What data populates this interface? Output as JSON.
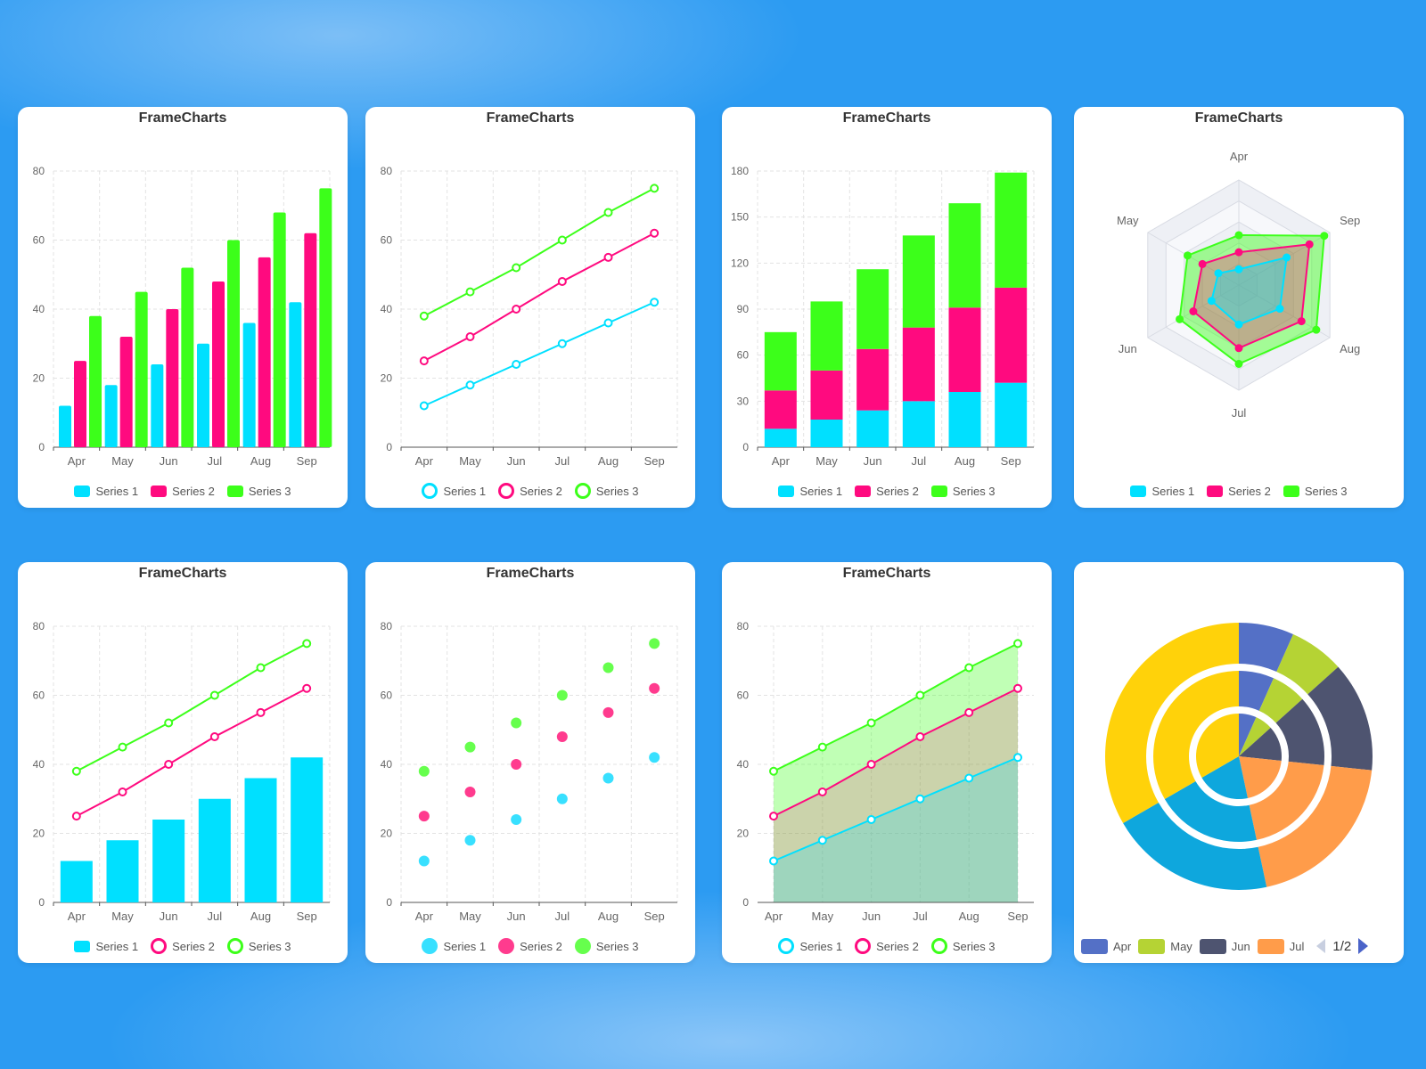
{
  "card_title": "FrameCharts",
  "months": [
    "Apr",
    "May",
    "Jun",
    "Jul",
    "Aug",
    "Sep"
  ],
  "colors": {
    "series1": "#00e0ff",
    "series2": "#ff0a7f",
    "series3": "#3cff1a",
    "scatter3": "#66ff4d",
    "scatter2": "#ff3b8e",
    "scatter1": "#38e0ff"
  },
  "legend": {
    "s1": "Series 1",
    "s2": "Series 2",
    "s3": "Series 3"
  },
  "pie_legend": {
    "apr": "Apr",
    "may": "May",
    "jun": "Jun",
    "jul": "Jul",
    "page": "1/2"
  },
  "pie_colors": [
    "#5470c6",
    "#b5d334",
    "#4e5470",
    "#ff9c4a",
    "#0ea7dd",
    "#ffd20a"
  ],
  "chart_data": [
    {
      "type": "bar",
      "title": "FrameCharts",
      "categories": [
        "Apr",
        "May",
        "Jun",
        "Jul",
        "Aug",
        "Sep"
      ],
      "ylim": [
        0,
        80
      ],
      "yticks": [
        0,
        20,
        40,
        60,
        80
      ],
      "series": [
        {
          "name": "Series 1",
          "values": [
            12,
            18,
            24,
            30,
            36,
            42
          ]
        },
        {
          "name": "Series 2",
          "values": [
            25,
            32,
            40,
            48,
            55,
            62
          ]
        },
        {
          "name": "Series 3",
          "values": [
            38,
            45,
            52,
            60,
            68,
            75
          ]
        }
      ]
    },
    {
      "type": "line",
      "title": "FrameCharts",
      "categories": [
        "Apr",
        "May",
        "Jun",
        "Jul",
        "Aug",
        "Sep"
      ],
      "ylim": [
        0,
        80
      ],
      "yticks": [
        0,
        20,
        40,
        60,
        80
      ],
      "series": [
        {
          "name": "Series 1",
          "values": [
            12,
            18,
            24,
            30,
            36,
            42
          ]
        },
        {
          "name": "Series 2",
          "values": [
            25,
            32,
            40,
            48,
            55,
            62
          ]
        },
        {
          "name": "Series 3",
          "values": [
            38,
            45,
            52,
            60,
            68,
            75
          ]
        }
      ]
    },
    {
      "type": "bar",
      "stacked": true,
      "title": "FrameCharts",
      "categories": [
        "Apr",
        "May",
        "Jun",
        "Jul",
        "Aug",
        "Sep"
      ],
      "ylim": [
        0,
        180
      ],
      "yticks": [
        0,
        30,
        60,
        90,
        120,
        150,
        180
      ],
      "series": [
        {
          "name": "Series 1",
          "values": [
            12,
            18,
            24,
            30,
            36,
            42
          ]
        },
        {
          "name": "Series 2",
          "values": [
            25,
            32,
            40,
            48,
            55,
            62
          ]
        },
        {
          "name": "Series 3",
          "values": [
            38,
            45,
            52,
            60,
            68,
            75
          ]
        }
      ]
    },
    {
      "type": "radar",
      "title": "FrameCharts",
      "indicators": [
        "Apr",
        "Sep",
        "Aug",
        "Jul",
        "Jun",
        "May"
      ],
      "max": 80,
      "series": [
        {
          "name": "Series 1",
          "values": [
            12,
            42,
            36,
            30,
            24,
            18
          ]
        },
        {
          "name": "Series 2",
          "values": [
            25,
            62,
            55,
            48,
            40,
            32
          ]
        },
        {
          "name": "Series 3",
          "values": [
            38,
            75,
            68,
            60,
            52,
            45
          ]
        }
      ]
    },
    {
      "type": "bar+line",
      "title": "FrameCharts",
      "categories": [
        "Apr",
        "May",
        "Jun",
        "Jul",
        "Aug",
        "Sep"
      ],
      "ylim": [
        0,
        80
      ],
      "yticks": [
        0,
        20,
        40,
        60,
        80
      ],
      "series": [
        {
          "name": "Series 1",
          "kind": "bar",
          "values": [
            12,
            18,
            24,
            30,
            36,
            42
          ]
        },
        {
          "name": "Series 2",
          "kind": "line",
          "values": [
            25,
            32,
            40,
            48,
            55,
            62
          ]
        },
        {
          "name": "Series 3",
          "kind": "line",
          "values": [
            38,
            45,
            52,
            60,
            68,
            75
          ]
        }
      ]
    },
    {
      "type": "scatter",
      "title": "FrameCharts",
      "categories": [
        "Apr",
        "May",
        "Jun",
        "Jul",
        "Aug",
        "Sep"
      ],
      "ylim": [
        0,
        80
      ],
      "yticks": [
        0,
        20,
        40,
        60,
        80
      ],
      "series": [
        {
          "name": "Series 1",
          "values": [
            12,
            18,
            24,
            30,
            36,
            42
          ]
        },
        {
          "name": "Series 2",
          "values": [
            25,
            32,
            40,
            48,
            55,
            62
          ]
        },
        {
          "name": "Series 3",
          "values": [
            38,
            45,
            52,
            60,
            68,
            75
          ]
        }
      ]
    },
    {
      "type": "area",
      "title": "FrameCharts",
      "categories": [
        "Apr",
        "May",
        "Jun",
        "Jul",
        "Aug",
        "Sep"
      ],
      "ylim": [
        0,
        80
      ],
      "yticks": [
        0,
        20,
        40,
        60,
        80
      ],
      "series": [
        {
          "name": "Series 1",
          "values": [
            12,
            18,
            24,
            30,
            36,
            42
          ]
        },
        {
          "name": "Series 2",
          "values": [
            25,
            32,
            40,
            48,
            55,
            62
          ]
        },
        {
          "name": "Series 3",
          "values": [
            38,
            45,
            52,
            60,
            68,
            75
          ]
        }
      ]
    },
    {
      "type": "pie",
      "variant": "nested-rings",
      "legend_visible": [
        "Apr",
        "May",
        "Jun",
        "Jul"
      ],
      "legend_page": "1/2",
      "rings": [
        {
          "name": "inner",
          "slices": [
            {
              "label": "Apr",
              "value": 1
            },
            {
              "label": "May",
              "value": 1
            },
            {
              "label": "Jun",
              "value": 2
            },
            {
              "label": "Jul",
              "value": 3
            },
            {
              "label": "Aug",
              "value": 3
            },
            {
              "label": "Sep",
              "value": 5
            }
          ]
        },
        {
          "name": "middle",
          "slices": [
            {
              "label": "Apr",
              "value": 1
            },
            {
              "label": "May",
              "value": 1
            },
            {
              "label": "Jun",
              "value": 2
            },
            {
              "label": "Jul",
              "value": 3
            },
            {
              "label": "Aug",
              "value": 3
            },
            {
              "label": "Sep",
              "value": 5
            }
          ]
        },
        {
          "name": "outer",
          "slices": [
            {
              "label": "Apr",
              "value": 1
            },
            {
              "label": "May",
              "value": 1
            },
            {
              "label": "Jun",
              "value": 2
            },
            {
              "label": "Jul",
              "value": 3
            },
            {
              "label": "Aug",
              "value": 3
            },
            {
              "label": "Sep",
              "value": 5
            }
          ]
        }
      ]
    }
  ]
}
